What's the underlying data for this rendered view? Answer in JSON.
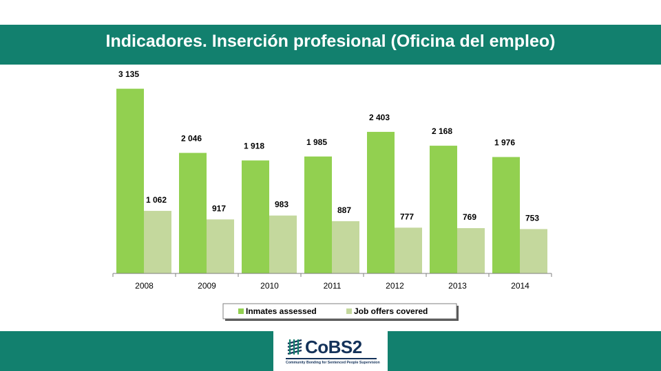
{
  "header": {
    "title": "Indicadores. Inserción profesional (Oficina del empleo)"
  },
  "colors": {
    "brand": "#12806e",
    "series_1": "#92d050",
    "series_2": "#c4d89d",
    "logo": "#14325a"
  },
  "logo": {
    "name": "CoBS2",
    "tagline": "Community Bonding for Sentenced People Supervision"
  },
  "chart_data": {
    "type": "bar",
    "title": "",
    "xlabel": "",
    "ylabel": "",
    "categories": [
      "2008",
      "2009",
      "2010",
      "2011",
      "2012",
      "2013",
      "2014"
    ],
    "series": [
      {
        "name": "Inmates assessed",
        "values": [
          3135,
          2046,
          1918,
          1985,
          2403,
          2168,
          1976
        ],
        "labels": [
          "3 135",
          "2 046",
          "1 918",
          "1 985",
          "2 403",
          "2 168",
          "1 976"
        ]
      },
      {
        "name": "Job offers covered",
        "values": [
          1062,
          917,
          983,
          887,
          777,
          769,
          753
        ],
        "labels": [
          "1 062",
          "917",
          "983",
          "887",
          "777",
          "769",
          "753"
        ]
      }
    ],
    "ylim": [
      0,
      3300
    ],
    "grid": false,
    "y_axis_visible": false,
    "legend_position": "bottom"
  }
}
